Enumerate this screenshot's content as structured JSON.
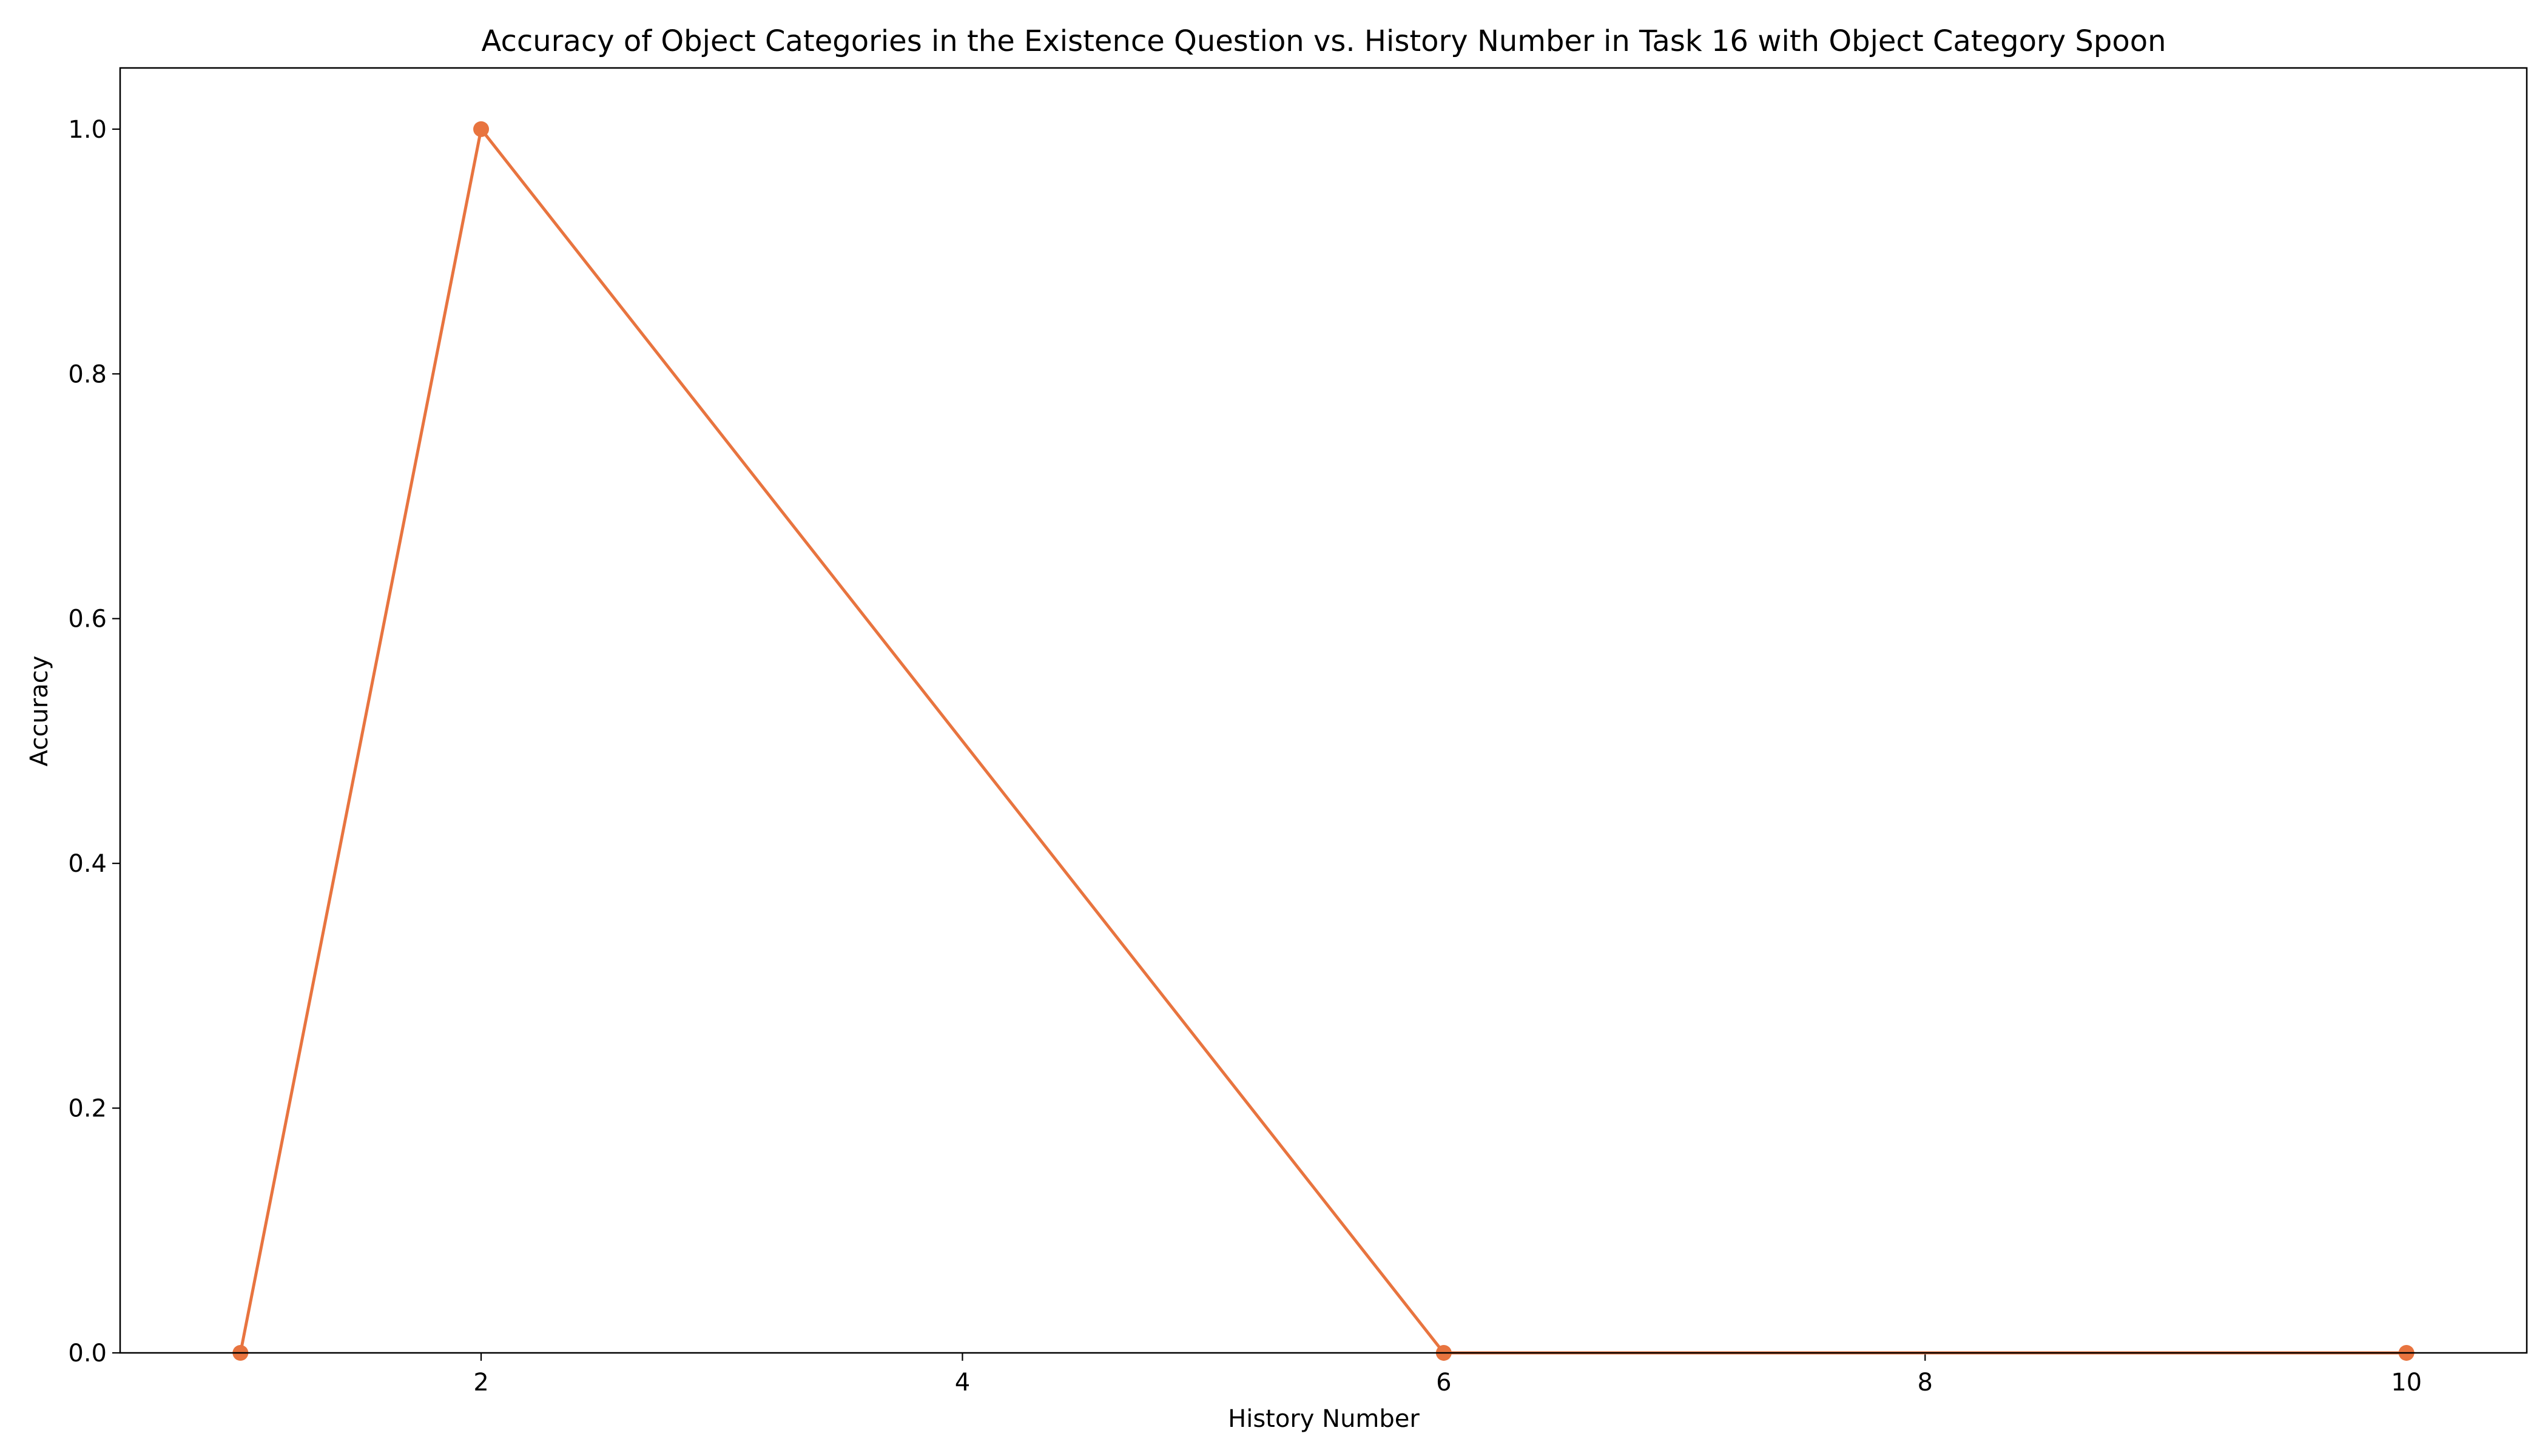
{
  "chart_data": {
    "type": "line",
    "title": "Accuracy of Object Categories in the Existence Question vs. History Number in Task 16 with Object Category Spoon",
    "xlabel": "History Number",
    "ylabel": "Accuracy",
    "xlim": [
      0.5,
      10.5
    ],
    "ylim": [
      0,
      1.05
    ],
    "xticks": [
      2,
      4,
      6,
      8,
      10
    ],
    "yticks": [
      0.0,
      0.2,
      0.4,
      0.6,
      0.8,
      1.0
    ],
    "xtick_labels": [
      "2",
      "4",
      "6",
      "8",
      "10"
    ],
    "ytick_labels": [
      "0.0",
      "0.2",
      "0.4",
      "0.6",
      "0.8",
      "1.0"
    ],
    "grid": false,
    "series": [
      {
        "color": "#E8743F",
        "marker": "circle",
        "x": [
          1,
          2,
          6,
          10
        ],
        "y": [
          0.0,
          1.0,
          0.0,
          0.0
        ]
      }
    ]
  }
}
